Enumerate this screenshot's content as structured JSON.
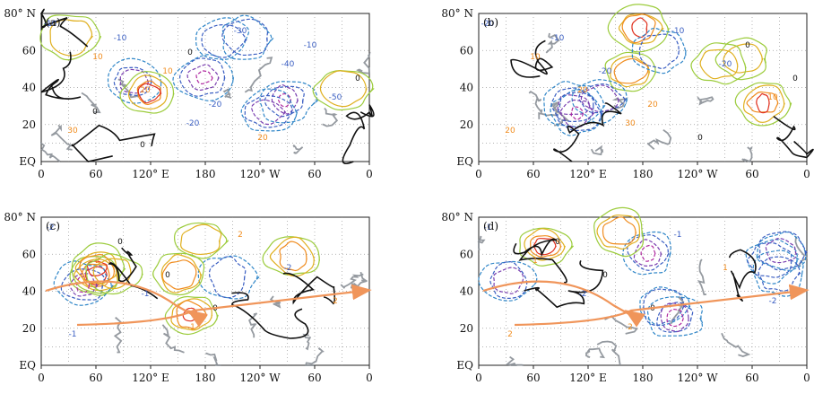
{
  "figure": {
    "type": "contour-map-panels"
  },
  "chart_data": [
    {
      "type": "contour",
      "panel_label": "(a)",
      "x_ticks": [
        "0",
        "60",
        "120° E",
        "180",
        "120° W",
        "60",
        "0"
      ],
      "y_ticks": [
        "EQ",
        "20",
        "40",
        "60",
        "80° N"
      ],
      "contour_labels": [
        "-10",
        "10",
        "20",
        "-20",
        "-30",
        "-40",
        "-50",
        "30",
        "-10",
        "10",
        "-20",
        "20",
        "-10",
        "0",
        "0",
        "0",
        "0"
      ],
      "arrows": false
    },
    {
      "type": "contour",
      "panel_label": "(b)",
      "x_ticks": [
        "0",
        "60",
        "120° E",
        "180",
        "120° W",
        "60",
        "0"
      ],
      "y_ticks": [
        "EQ",
        "20",
        "40",
        "60",
        "80° N"
      ],
      "contour_labels": [
        "-20",
        "10",
        "20",
        "30",
        "-10",
        "-20",
        "10",
        "20",
        "-10",
        "-20",
        "20",
        "0",
        "0",
        "0"
      ],
      "arrows": false
    },
    {
      "type": "contour",
      "panel_label": "(c)",
      "x_ticks": [
        "0",
        "60",
        "120° E",
        "180",
        "120° W",
        "60",
        "0"
      ],
      "y_ticks": [
        "EQ",
        "20",
        "40",
        "60",
        "80° N"
      ],
      "contour_labels": [
        "-2",
        "2",
        "-1",
        "1",
        "2",
        "-2",
        "2",
        "-1",
        "0",
        "0",
        "0"
      ],
      "arrows": true
    },
    {
      "type": "contour",
      "panel_label": "(d)",
      "x_ticks": [
        "0",
        "60",
        "120° E",
        "180",
        "120° W",
        "60",
        "0"
      ],
      "y_ticks": [
        "EQ",
        "20",
        "40",
        "60",
        "80° N"
      ],
      "contour_labels": [
        "-1",
        "1",
        "-2",
        "2",
        "-1",
        "1",
        "-2",
        "2",
        "0",
        "0",
        "0"
      ],
      "arrows": true
    }
  ],
  "colors": {
    "zero_contour": "#111111",
    "positive": [
      "#2a9d3a",
      "#9ccc3c",
      "#e0b020",
      "#f08c1e",
      "#e0301e"
    ],
    "negative": [
      "#1fb7b7",
      "#2f86c8",
      "#3a5ec2",
      "#7a3fb0",
      "#b02aa0"
    ],
    "coastline": "#8a8f96",
    "arrow": "#f0955a",
    "grid": "#9a9a9a"
  }
}
